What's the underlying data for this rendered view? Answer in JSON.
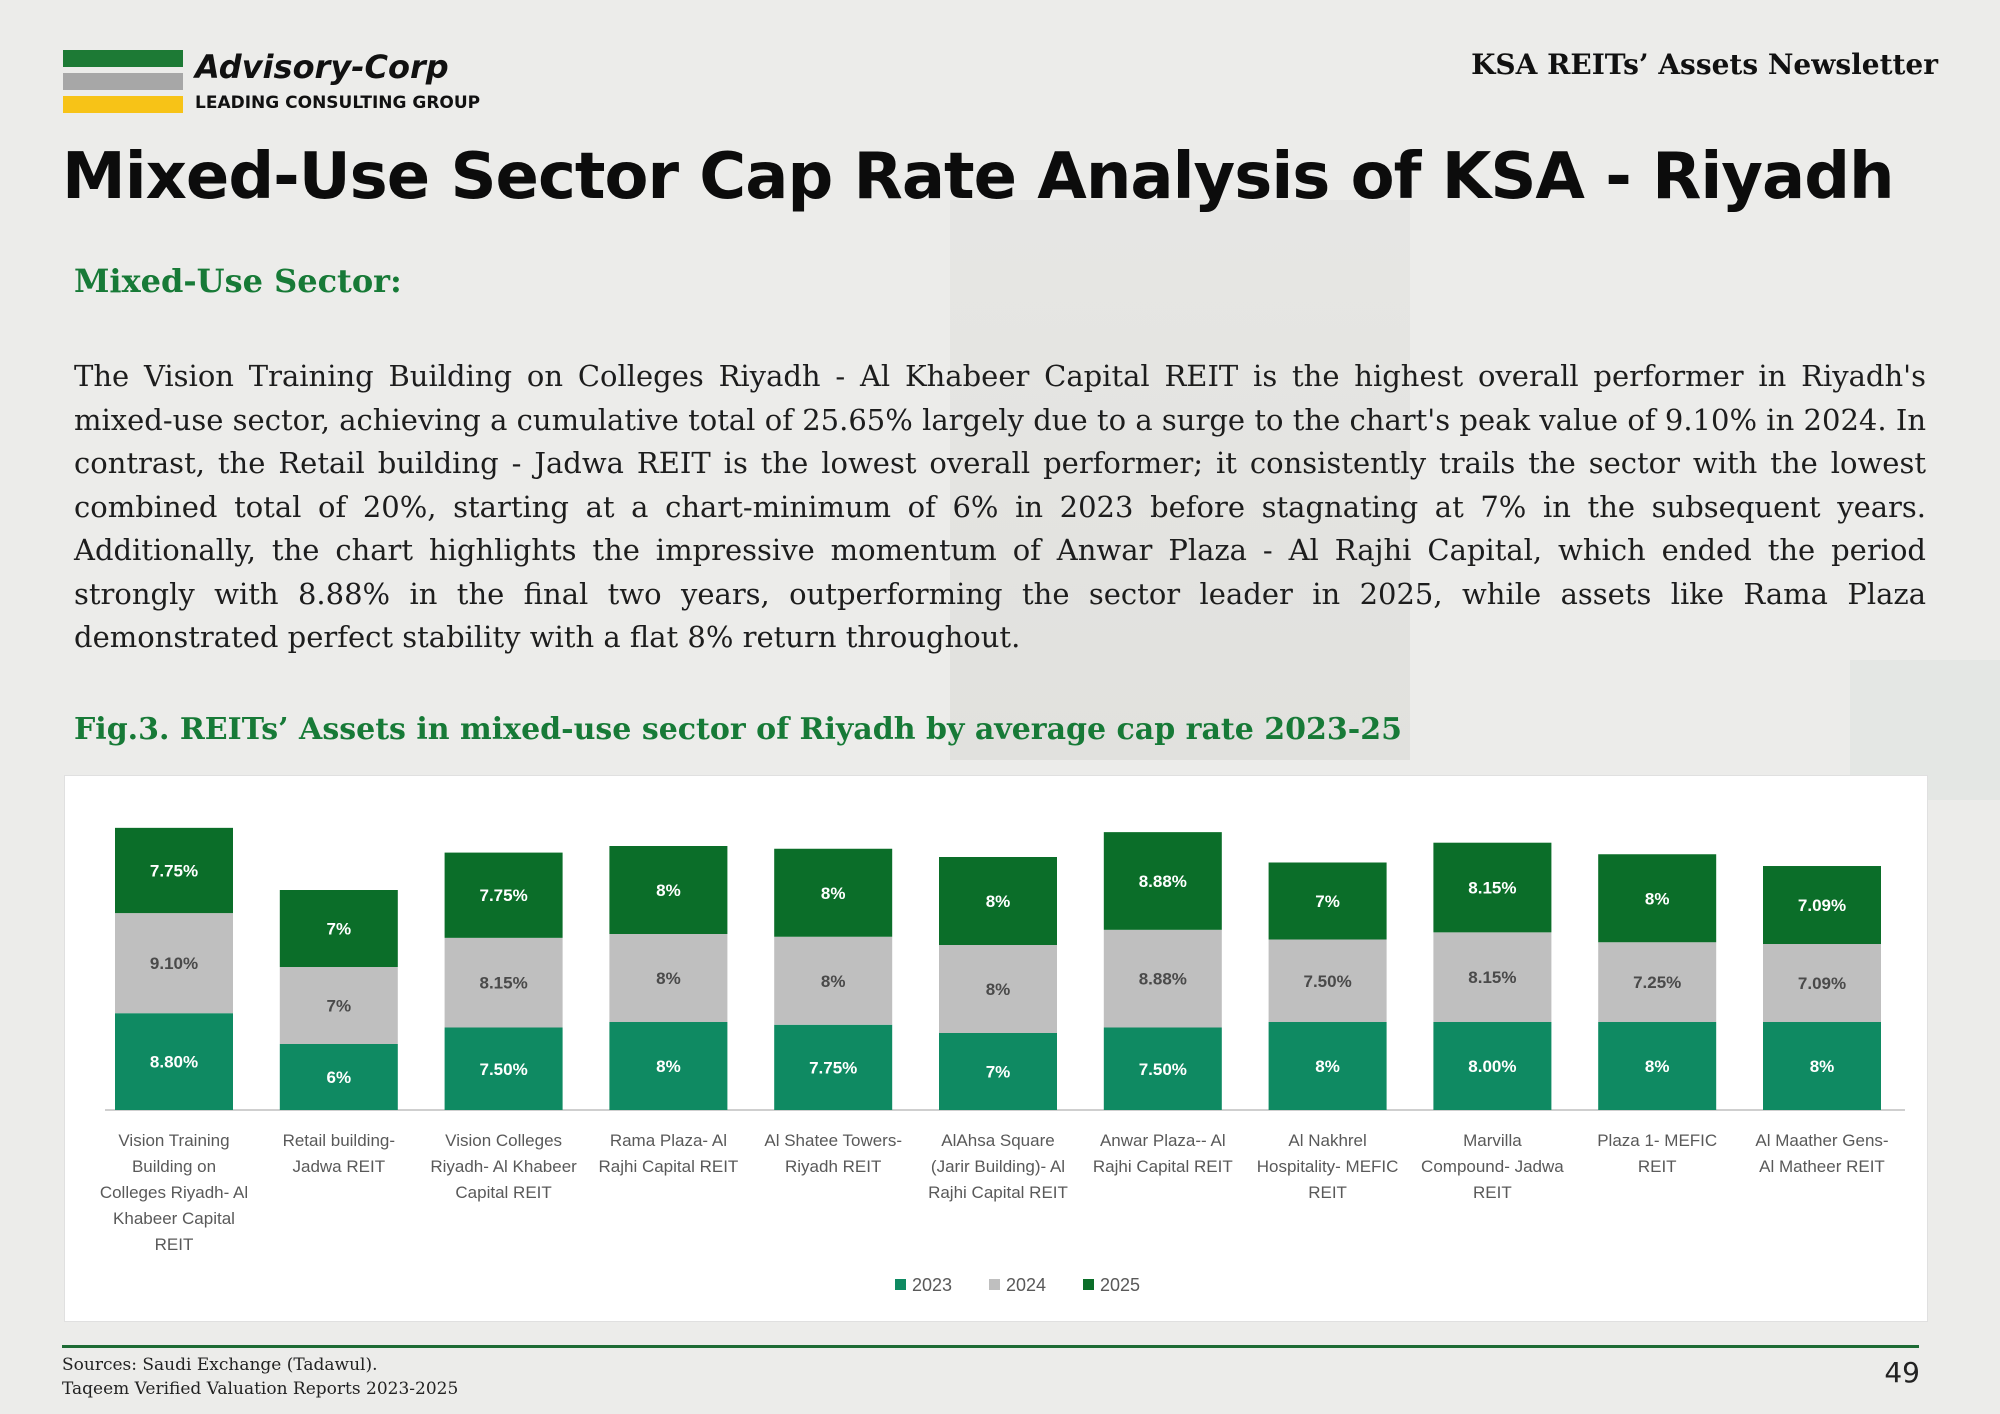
{
  "header": {
    "brand": "Advisory-Corp",
    "brand_sub": "LEADING CONSULTING GROUP",
    "newsletter": "KSA REITs’ Assets Newsletter",
    "title": "Mixed-Use Sector Cap Rate Analysis of KSA - Riyadh"
  },
  "colors": {
    "logo_green": "#1d7a35",
    "logo_gray": "#a7a7a7",
    "logo_yellow": "#f7c317",
    "accent_green": "#177a37",
    "series_2023": "#0f8a62",
    "series_2024": "#bfbfbf",
    "series_2025": "#0b6e29"
  },
  "section": {
    "heading": "Mixed-Use Sector:",
    "paragraph": "The Vision Training Building on Colleges Riyadh - Al Khabeer Capital REIT is the highest overall performer in Riyadh's mixed-use sector, achieving a cumulative total of 25.65% largely due to a surge to the chart's peak value of 9.10% in 2024. In contrast, the Retail building - Jadwa REIT is the lowest overall performer; it consistently trails the sector with the lowest combined total of 20%, starting at a chart-minimum of 6% in 2023 before stagnating at 7% in the subsequent years. Additionally, the chart highlights the impressive momentum of Anwar Plaza - Al Rajhi Capital, which ended the period strongly with 8.88% in the final two years, outperforming the sector leader in 2025, while assets like Rama Plaza demonstrated perfect stability with a flat 8% return throughout."
  },
  "figure": {
    "title": "Fig.3. REITs’ Assets in mixed-use sector of Riyadh by average cap rate 2023-25"
  },
  "chart_data": {
    "type": "bar",
    "stacked": true,
    "title": "Fig.3. REITs’ Assets in mixed-use sector of Riyadh by average cap rate 2023-25",
    "xlabel": "",
    "ylabel": "",
    "ylim": [
      0,
      26
    ],
    "grid": false,
    "legend": "bottom-center",
    "categories": [
      "Vision Training Building on Colleges Riyadh- Al Khabeer Capital REIT",
      "Retail building- Jadwa REIT",
      "Vision Colleges Riyadh- Al Khabeer Capital REIT",
      "Rama Plaza- Al Rajhi Capital REIT",
      "Al Shatee Towers- Riyadh REIT",
      "AlAhsa Square (Jarir Building)- Al Rajhi Capital REIT",
      "Anwar Plaza-- Al Rajhi Capital REIT",
      "Al Nakhrel Hospitality- MEFIC REIT",
      "Marvilla Compound- Jadwa REIT",
      "Plaza 1- MEFIC REIT",
      "Al Maather Gens- Al Matheer REIT"
    ],
    "category_lines": [
      [
        "Vision Training",
        "Building on",
        "Colleges Riyadh- Al",
        "Khabeer Capital",
        "REIT"
      ],
      [
        "Retail building-",
        "Jadwa REIT"
      ],
      [
        "Vision Colleges",
        "Riyadh- Al Khabeer",
        "Capital REIT"
      ],
      [
        "Rama Plaza- Al",
        "Rajhi Capital REIT"
      ],
      [
        "Al Shatee Towers-",
        "Riyadh REIT"
      ],
      [
        "AlAhsa Square",
        "(Jarir Building)- Al",
        "Rajhi Capital REIT"
      ],
      [
        "Anwar Plaza-- Al",
        "Rajhi Capital REIT"
      ],
      [
        "Al Nakhrel",
        "Hospitality- MEFIC",
        "REIT"
      ],
      [
        "Marvilla",
        "Compound- Jadwa",
        "REIT"
      ],
      [
        "Plaza 1- MEFIC",
        "REIT"
      ],
      [
        "Al Maather Gens-",
        "Al Matheer REIT"
      ]
    ],
    "series": [
      {
        "name": "2023",
        "values": [
          8.8,
          6,
          7.5,
          8,
          7.75,
          7,
          7.5,
          8,
          8.0,
          8,
          8
        ],
        "labels": [
          "8.80%",
          "6%",
          "7.50%",
          "8%",
          "7.75%",
          "7%",
          "7.50%",
          "8%",
          "8.00%",
          "8%",
          "8%"
        ]
      },
      {
        "name": "2024",
        "values": [
          9.1,
          7,
          8.15,
          8,
          8,
          8,
          8.88,
          7.5,
          8.15,
          7.25,
          7.09
        ],
        "labels": [
          "9.10%",
          "7%",
          "8.15%",
          "8%",
          "8%",
          "8%",
          "8.88%",
          "7.50%",
          "8.15%",
          "7.25%",
          "7.09%"
        ]
      },
      {
        "name": "2025",
        "values": [
          7.75,
          7,
          7.75,
          8,
          8,
          8,
          8.88,
          7,
          8.15,
          8,
          7.09
        ],
        "labels": [
          "7.75%",
          "7%",
          "7.75%",
          "8%",
          "8%",
          "8%",
          "8.88%",
          "7%",
          "8.15%",
          "8%",
          "7.09%"
        ]
      }
    ]
  },
  "footer": {
    "source_1": "Sources: Saudi Exchange (Tadawul).",
    "source_2": "Taqeem Verified Valuation Reports 2023-2025",
    "page": "49"
  }
}
